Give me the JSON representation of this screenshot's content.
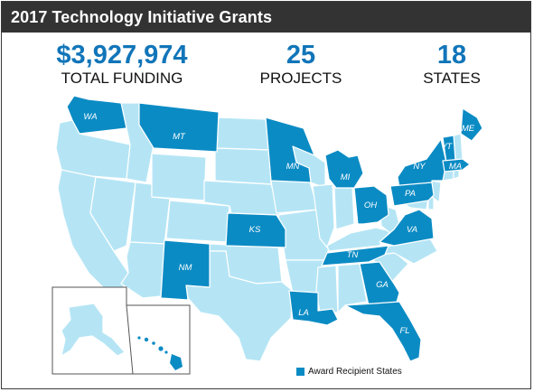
{
  "header": {
    "title": "2017 Technology Initiative Grants"
  },
  "stats": [
    {
      "value": "$3,927,974",
      "label": "TOTAL FUNDING"
    },
    {
      "value": "25",
      "label": "PROJECTS"
    },
    {
      "value": "18",
      "label": "STATES"
    }
  ],
  "map": {
    "recipient_state_labels": [
      "WA",
      "MT",
      "MN",
      "MI",
      "ME",
      "VT",
      "NY",
      "MA",
      "PA",
      "OH",
      "KS",
      "VA",
      "TN",
      "NM",
      "GA",
      "LA",
      "FL",
      "HI"
    ],
    "inset_label": "HI"
  },
  "legend": {
    "label": "Award Recipient States"
  },
  "colors": {
    "header_bg": "#333333",
    "stat_value": "#1175b9",
    "recipient_fill": "#0b8bc4",
    "other_fill": "#b5e5f5",
    "state_border": "#ffffff",
    "outline": "#3a3a3a"
  }
}
